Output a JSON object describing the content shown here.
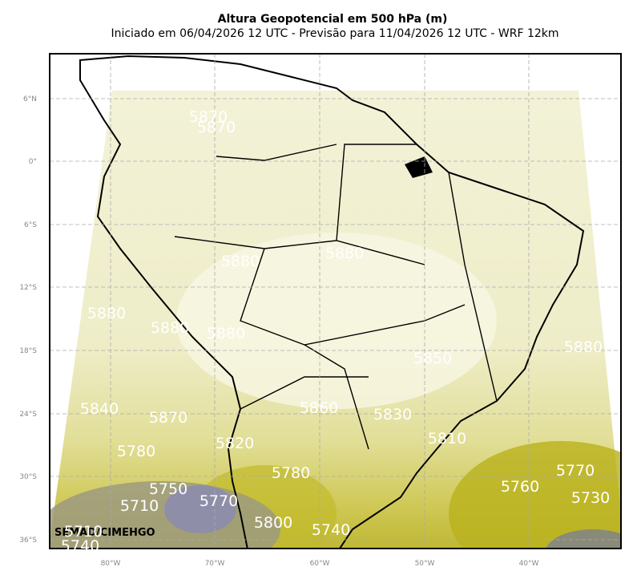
{
  "header": {
    "title": "Altura Geopotencial em 500 hPa (m)",
    "subtitle": "Iniciado em 06/04/2026 12 UTC - Previsão para 11/04/2026 12 UTC - WRF 12km"
  },
  "map": {
    "lat_labels": [
      "6°N",
      "0°",
      "6°S",
      "12°S",
      "18°S",
      "24°S",
      "30°S",
      "36°S"
    ],
    "lon_labels": [
      "80°W",
      "70°W",
      "60°W",
      "50°W",
      "40°W"
    ],
    "contour_labels": [
      "5870",
      "5870",
      "5880",
      "5880",
      "5880",
      "5880",
      "5880",
      "5880",
      "5850",
      "5840",
      "5870",
      "5860",
      "5830",
      "5810",
      "5780",
      "5820",
      "5780",
      "5770",
      "5760",
      "5730",
      "5750",
      "5710",
      "5770",
      "5800",
      "5740",
      "5710",
      "5740"
    ],
    "watermark": "SEMAD/CIMEHGO"
  }
}
